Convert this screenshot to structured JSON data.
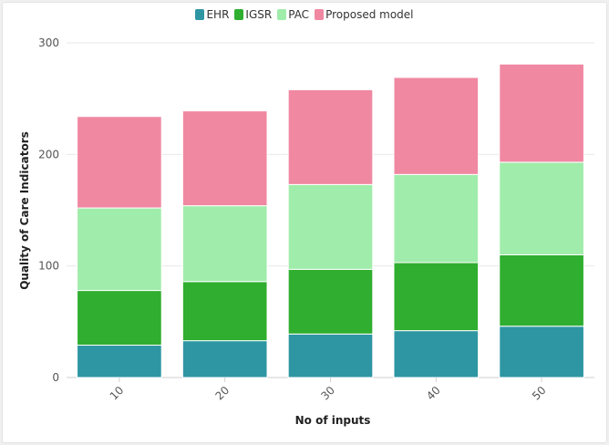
{
  "chart_data": {
    "type": "bar",
    "stacked": true,
    "categories": [
      "10",
      "20",
      "30",
      "40",
      "50"
    ],
    "series": [
      {
        "name": "EHR",
        "color": "#2e96a3",
        "values": [
          29,
          33,
          39,
          42,
          46
        ]
      },
      {
        "name": "IGSR",
        "color": "#2fae2f",
        "values": [
          49,
          53,
          58,
          61,
          64
        ]
      },
      {
        "name": "PAC",
        "color": "#a0ecaa",
        "values": [
          74,
          68,
          76,
          79,
          83
        ]
      },
      {
        "name": "Proposed model",
        "color": "#f088a2",
        "values": [
          82,
          85,
          85,
          87,
          88
        ]
      }
    ],
    "xlabel": "No of inputs",
    "ylabel": "Quality of Care Indicators",
    "ylim": [
      0,
      300
    ],
    "yticks": [
      0,
      100,
      200,
      300
    ],
    "grid": true,
    "legend_position": "top-center"
  }
}
